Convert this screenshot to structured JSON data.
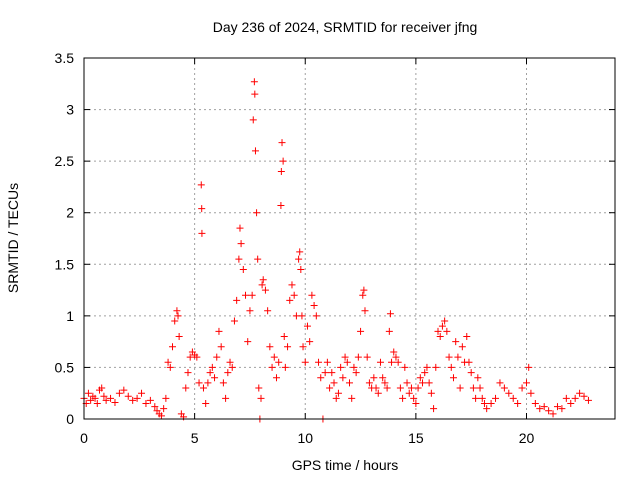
{
  "chart_data": {
    "type": "scatter",
    "title": "Day 236 of 2024, SRMTID for receiver jfng",
    "xlabel": "GPS time / hours",
    "ylabel": "SRMTID / TECUs",
    "xlim": [
      0,
      24
    ],
    "ylim": [
      0,
      3.5
    ],
    "grid": true,
    "legend": "none",
    "marker": "+",
    "x_ticks": [
      0,
      5,
      10,
      15,
      20
    ],
    "x_tick_labels": [
      "0",
      "5",
      "10",
      "15",
      "20"
    ],
    "y_ticks": [
      0,
      0.5,
      1,
      1.5,
      2,
      2.5,
      3,
      3.5
    ],
    "y_tick_labels": [
      "0",
      "0.5",
      "1",
      "1.5",
      "2",
      "2.5",
      "3",
      "3.5"
    ],
    "series": [
      {
        "name": "SRMTID",
        "color": "#ff0000",
        "points": [
          [
            0.0,
            0.2
          ],
          [
            0.1,
            0.15
          ],
          [
            0.2,
            0.25
          ],
          [
            0.3,
            0.18
          ],
          [
            0.4,
            0.22
          ],
          [
            0.5,
            0.2
          ],
          [
            0.6,
            0.15
          ],
          [
            0.7,
            0.28
          ],
          [
            0.8,
            0.3
          ],
          [
            0.9,
            0.22
          ],
          [
            1.0,
            0.18
          ],
          [
            1.2,
            0.2
          ],
          [
            1.4,
            0.16
          ],
          [
            1.6,
            0.25
          ],
          [
            1.8,
            0.28
          ],
          [
            2.0,
            0.22
          ],
          [
            2.2,
            0.18
          ],
          [
            2.4,
            0.2
          ],
          [
            2.6,
            0.25
          ],
          [
            2.8,
            0.15
          ],
          [
            3.0,
            0.18
          ],
          [
            3.2,
            0.12
          ],
          [
            3.3,
            0.08
          ],
          [
            3.4,
            0.05
          ],
          [
            3.5,
            0.03
          ],
          [
            3.6,
            0.1
          ],
          [
            3.7,
            0.2
          ],
          [
            3.8,
            0.55
          ],
          [
            3.9,
            0.5
          ],
          [
            4.0,
            0.7
          ],
          [
            4.1,
            0.95
          ],
          [
            4.2,
            1.05
          ],
          [
            4.25,
            1.0
          ],
          [
            4.3,
            0.8
          ],
          [
            4.4,
            0.05
          ],
          [
            4.5,
            0.02
          ],
          [
            4.6,
            0.3
          ],
          [
            4.7,
            0.45
          ],
          [
            4.8,
            0.6
          ],
          [
            4.9,
            0.65
          ],
          [
            5.0,
            0.62
          ],
          [
            5.1,
            0.6
          ],
          [
            5.2,
            0.35
          ],
          [
            5.3,
            2.27
          ],
          [
            5.32,
            2.04
          ],
          [
            5.33,
            1.8
          ],
          [
            5.4,
            0.3
          ],
          [
            5.5,
            0.15
          ],
          [
            5.6,
            0.35
          ],
          [
            5.7,
            0.45
          ],
          [
            5.8,
            0.5
          ],
          [
            5.9,
            0.4
          ],
          [
            6.0,
            0.6
          ],
          [
            6.1,
            0.85
          ],
          [
            6.2,
            0.7
          ],
          [
            6.3,
            0.35
          ],
          [
            6.4,
            0.2
          ],
          [
            6.5,
            0.45
          ],
          [
            6.6,
            0.55
          ],
          [
            6.7,
            0.5
          ],
          [
            6.8,
            0.95
          ],
          [
            6.9,
            1.15
          ],
          [
            7.0,
            1.55
          ],
          [
            7.05,
            1.85
          ],
          [
            7.1,
            1.7
          ],
          [
            7.2,
            1.45
          ],
          [
            7.3,
            1.2
          ],
          [
            7.4,
            0.75
          ],
          [
            7.5,
            1.05
          ],
          [
            7.6,
            1.2
          ],
          [
            7.65,
            2.9
          ],
          [
            7.7,
            3.27
          ],
          [
            7.72,
            3.15
          ],
          [
            7.75,
            2.6
          ],
          [
            7.8,
            2.0
          ],
          [
            7.85,
            1.55
          ],
          [
            7.9,
            0.3
          ],
          [
            7.95,
            0.0
          ],
          [
            8.0,
            0.2
          ],
          [
            8.05,
            1.3
          ],
          [
            8.1,
            1.35
          ],
          [
            8.2,
            1.25
          ],
          [
            8.3,
            1.05
          ],
          [
            8.4,
            0.7
          ],
          [
            8.5,
            0.5
          ],
          [
            8.6,
            0.6
          ],
          [
            8.7,
            0.4
          ],
          [
            8.8,
            0.55
          ],
          [
            8.9,
            2.07
          ],
          [
            8.92,
            2.4
          ],
          [
            8.95,
            2.68
          ],
          [
            9.0,
            2.5
          ],
          [
            9.05,
            0.8
          ],
          [
            9.1,
            0.5
          ],
          [
            9.2,
            0.7
          ],
          [
            9.3,
            1.15
          ],
          [
            9.4,
            1.3
          ],
          [
            9.5,
            1.2
          ],
          [
            9.6,
            1.0
          ],
          [
            9.7,
            1.55
          ],
          [
            9.75,
            1.62
          ],
          [
            9.8,
            1.45
          ],
          [
            9.85,
            1.0
          ],
          [
            9.9,
            0.7
          ],
          [
            10.0,
            0.55
          ],
          [
            10.1,
            0.9
          ],
          [
            10.2,
            0.75
          ],
          [
            10.3,
            1.2
          ],
          [
            10.4,
            1.1
          ],
          [
            10.5,
            1.0
          ],
          [
            10.6,
            0.55
          ],
          [
            10.7,
            0.4
          ],
          [
            10.8,
            0.0
          ],
          [
            10.9,
            0.45
          ],
          [
            11.0,
            0.55
          ],
          [
            11.1,
            0.3
          ],
          [
            11.2,
            0.45
          ],
          [
            11.3,
            0.35
          ],
          [
            11.4,
            0.2
          ],
          [
            11.5,
            0.25
          ],
          [
            11.6,
            0.5
          ],
          [
            11.7,
            0.4
          ],
          [
            11.8,
            0.6
          ],
          [
            11.9,
            0.55
          ],
          [
            12.0,
            0.35
          ],
          [
            12.1,
            0.2
          ],
          [
            12.2,
            0.5
          ],
          [
            12.3,
            0.45
          ],
          [
            12.4,
            0.6
          ],
          [
            12.5,
            0.85
          ],
          [
            12.6,
            1.2
          ],
          [
            12.65,
            1.25
          ],
          [
            12.7,
            1.05
          ],
          [
            12.8,
            0.6
          ],
          [
            12.9,
            0.35
          ],
          [
            13.0,
            0.3
          ],
          [
            13.1,
            0.4
          ],
          [
            13.2,
            0.3
          ],
          [
            13.3,
            0.25
          ],
          [
            13.4,
            0.55
          ],
          [
            13.5,
            0.4
          ],
          [
            13.6,
            0.35
          ],
          [
            13.7,
            0.3
          ],
          [
            13.8,
            0.85
          ],
          [
            13.85,
            1.02
          ],
          [
            13.9,
            0.55
          ],
          [
            14.0,
            0.65
          ],
          [
            14.1,
            0.6
          ],
          [
            14.2,
            0.55
          ],
          [
            14.3,
            0.3
          ],
          [
            14.4,
            0.2
          ],
          [
            14.5,
            0.5
          ],
          [
            14.6,
            0.35
          ],
          [
            14.7,
            0.25
          ],
          [
            14.8,
            0.3
          ],
          [
            14.9,
            0.2
          ],
          [
            15.0,
            0.15
          ],
          [
            15.1,
            0.3
          ],
          [
            15.2,
            0.4
          ],
          [
            15.3,
            0.35
          ],
          [
            15.4,
            0.45
          ],
          [
            15.5,
            0.5
          ],
          [
            15.6,
            0.35
          ],
          [
            15.7,
            0.25
          ],
          [
            15.8,
            0.1
          ],
          [
            15.9,
            0.5
          ],
          [
            16.0,
            0.85
          ],
          [
            16.1,
            0.8
          ],
          [
            16.2,
            0.9
          ],
          [
            16.3,
            0.95
          ],
          [
            16.4,
            0.85
          ],
          [
            16.5,
            0.6
          ],
          [
            16.6,
            0.5
          ],
          [
            16.7,
            0.4
          ],
          [
            16.8,
            0.75
          ],
          [
            16.9,
            0.6
          ],
          [
            17.0,
            0.3
          ],
          [
            17.1,
            0.7
          ],
          [
            17.2,
            0.55
          ],
          [
            17.3,
            0.8
          ],
          [
            17.4,
            0.55
          ],
          [
            17.5,
            0.45
          ],
          [
            17.6,
            0.3
          ],
          [
            17.7,
            0.2
          ],
          [
            17.8,
            0.4
          ],
          [
            17.9,
            0.3
          ],
          [
            18.0,
            0.2
          ],
          [
            18.1,
            0.15
          ],
          [
            18.2,
            0.1
          ],
          [
            18.4,
            0.15
          ],
          [
            18.6,
            0.2
          ],
          [
            18.8,
            0.35
          ],
          [
            19.0,
            0.3
          ],
          [
            19.2,
            0.25
          ],
          [
            19.4,
            0.2
          ],
          [
            19.6,
            0.15
          ],
          [
            19.8,
            0.3
          ],
          [
            20.0,
            0.35
          ],
          [
            20.1,
            0.5
          ],
          [
            20.2,
            0.25
          ],
          [
            20.4,
            0.15
          ],
          [
            20.6,
            0.1
          ],
          [
            20.8,
            0.12
          ],
          [
            21.0,
            0.08
          ],
          [
            21.2,
            0.05
          ],
          [
            21.4,
            0.12
          ],
          [
            21.6,
            0.1
          ],
          [
            21.8,
            0.2
          ],
          [
            22.0,
            0.15
          ],
          [
            22.2,
            0.2
          ],
          [
            22.4,
            0.25
          ],
          [
            22.6,
            0.22
          ],
          [
            22.8,
            0.18
          ]
        ]
      }
    ]
  }
}
